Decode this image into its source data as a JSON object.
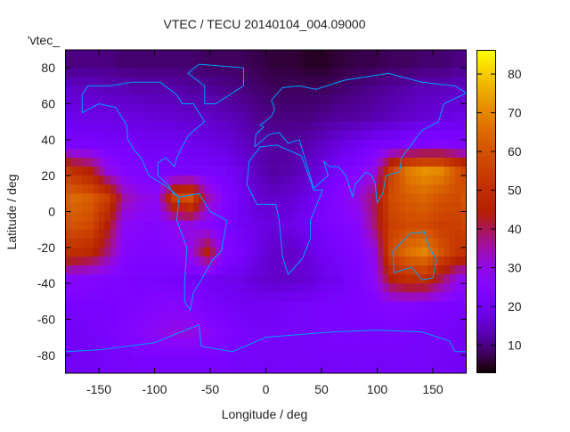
{
  "chart_data": {
    "type": "heatmap",
    "title": "VTEC / TECU 20140104_004.09000",
    "xlabel": "Longitude / deg",
    "ylabel": "Latitude / deg",
    "key_label": "'vtec_",
    "xlim": [
      -180,
      180
    ],
    "ylim": [
      -90,
      90
    ],
    "xticks": [
      -150,
      -100,
      -50,
      0,
      50,
      100,
      150
    ],
    "yticks": [
      -80,
      -60,
      -40,
      -20,
      0,
      20,
      40,
      60,
      80
    ],
    "colorbar": {
      "range": [
        3,
        86
      ],
      "ticks": [
        10,
        20,
        30,
        40,
        50,
        60,
        70,
        80
      ]
    },
    "coastline_color": "#00a0ff",
    "grid": false,
    "lon_centers": [
      -172.5,
      -157.5,
      -142.5,
      -127.5,
      -112.5,
      -97.5,
      -82.5,
      -67.5,
      -52.5,
      -37.5,
      -22.5,
      -7.5,
      7.5,
      22.5,
      37.5,
      52.5,
      67.5,
      82.5,
      97.5,
      112.5,
      127.5,
      142.5,
      157.5,
      172.5
    ],
    "lat_centers": [
      82.5,
      67.5,
      52.5,
      37.5,
      22.5,
      7.5,
      -7.5,
      -22.5,
      -37.5,
      -52.5,
      -67.5,
      -82.5
    ],
    "values": [
      [
        10,
        10,
        10,
        9,
        9,
        9,
        9,
        9,
        8,
        8,
        8,
        7,
        6,
        6,
        5,
        5,
        6,
        7,
        7,
        8,
        8,
        9,
        9,
        10
      ],
      [
        15,
        15,
        14,
        14,
        13,
        13,
        13,
        12,
        12,
        11,
        10,
        9,
        8,
        8,
        8,
        8,
        9,
        10,
        11,
        12,
        13,
        14,
        14,
        15
      ],
      [
        18,
        18,
        18,
        17,
        17,
        16,
        16,
        15,
        15,
        14,
        13,
        11,
        10,
        10,
        10,
        11,
        12,
        12,
        13,
        14,
        15,
        16,
        17,
        18
      ],
      [
        22,
        22,
        21,
        21,
        20,
        20,
        20,
        19,
        18,
        17,
        15,
        13,
        12,
        12,
        13,
        15,
        17,
        19,
        21,
        22,
        23,
        24,
        25,
        24
      ],
      [
        50,
        45,
        30,
        25,
        23,
        22,
        22,
        22,
        22,
        21,
        18,
        14,
        12,
        13,
        15,
        18,
        22,
        25,
        30,
        55,
        68,
        72,
        70,
        60
      ],
      [
        65,
        62,
        55,
        35,
        30,
        28,
        55,
        60,
        35,
        25,
        20,
        16,
        15,
        16,
        18,
        22,
        26,
        30,
        40,
        58,
        62,
        64,
        60,
        58
      ],
      [
        60,
        58,
        45,
        28,
        26,
        25,
        28,
        30,
        26,
        22,
        20,
        18,
        17,
        18,
        20,
        22,
        24,
        26,
        38,
        55,
        58,
        58,
        55,
        55
      ],
      [
        50,
        48,
        38,
        26,
        24,
        24,
        25,
        30,
        45,
        25,
        22,
        18,
        15,
        15,
        17,
        20,
        22,
        24,
        30,
        58,
        66,
        70,
        60,
        52
      ],
      [
        26,
        25,
        24,
        23,
        22,
        22,
        21,
        20,
        20,
        19,
        18,
        16,
        15,
        15,
        16,
        18,
        20,
        22,
        28,
        45,
        50,
        50,
        40,
        30
      ],
      [
        22,
        22,
        22,
        23,
        24,
        25,
        26,
        25,
        22,
        21,
        20,
        20,
        20,
        21,
        21,
        22,
        22,
        23,
        24,
        25,
        25,
        24,
        23,
        22
      ],
      [
        20,
        21,
        22,
        24,
        26,
        28,
        30,
        30,
        27,
        24,
        22,
        21,
        21,
        21,
        21,
        22,
        22,
        22,
        22,
        22,
        22,
        21,
        21,
        20
      ],
      [
        20,
        20,
        21,
        21,
        22,
        22,
        22,
        22,
        22,
        22,
        21,
        21,
        21,
        21,
        21,
        21,
        21,
        21,
        21,
        21,
        21,
        21,
        21,
        20
      ]
    ]
  }
}
